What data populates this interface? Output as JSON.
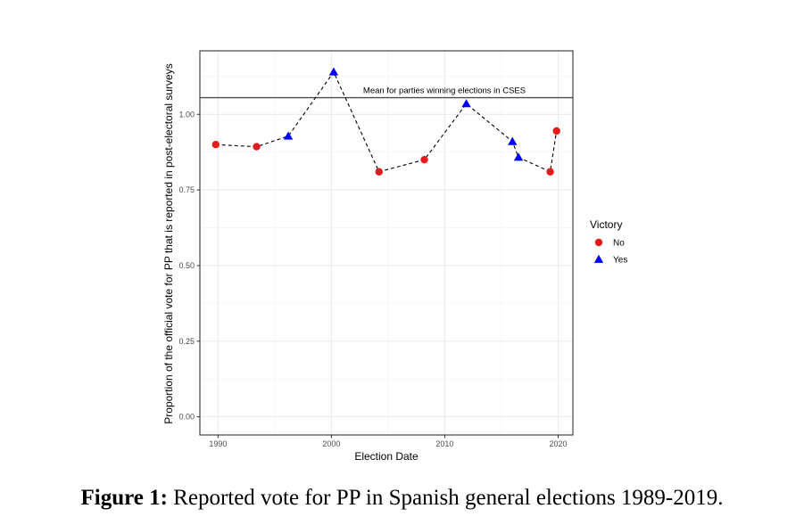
{
  "chart_data": {
    "type": "scatter",
    "xlabel": "Election Date",
    "ylabel": "Proportion of the official vote for PP that is reported in post-electoral surveys",
    "xlim": [
      1988.4,
      2021.3
    ],
    "ylim": [
      -0.06,
      1.21
    ],
    "x_ticks": [
      1990,
      2000,
      2010,
      2020
    ],
    "x_tick_labels": [
      "1990",
      "2000",
      "2010",
      "2020"
    ],
    "y_ticks": [
      0.0,
      0.25,
      0.5,
      0.75,
      1.0
    ],
    "y_tick_labels": [
      "0.00",
      "0.25",
      "0.50",
      "0.75",
      "1.00"
    ],
    "grid": true,
    "connect_line": "dashed",
    "reference_line": {
      "y": 1.055,
      "label": "Mean for parties winning elections in CSES"
    },
    "legend": {
      "title": "Victory",
      "position": "right",
      "entries": [
        {
          "label": "No",
          "shape": "circle",
          "color": "#e41a1c"
        },
        {
          "label": "Yes",
          "shape": "triangle",
          "color": "#0000ff"
        }
      ]
    },
    "points": [
      {
        "x": 1989.8,
        "y": 0.9,
        "victory": "No"
      },
      {
        "x": 1993.4,
        "y": 0.893,
        "victory": "No"
      },
      {
        "x": 1996.2,
        "y": 0.928,
        "victory": "Yes"
      },
      {
        "x": 2000.2,
        "y": 1.14,
        "victory": "Yes"
      },
      {
        "x": 2004.2,
        "y": 0.81,
        "victory": "No"
      },
      {
        "x": 2008.2,
        "y": 0.85,
        "victory": "No"
      },
      {
        "x": 2011.9,
        "y": 1.035,
        "victory": "Yes"
      },
      {
        "x": 2015.97,
        "y": 0.91,
        "victory": "Yes"
      },
      {
        "x": 2016.5,
        "y": 0.858,
        "victory": "Yes"
      },
      {
        "x": 2019.3,
        "y": 0.81,
        "victory": "No"
      },
      {
        "x": 2019.86,
        "y": 0.945,
        "victory": "No"
      }
    ]
  },
  "caption": {
    "label": "Figure 1:",
    "text": "Reported vote for PP in Spanish general elections 1989-2019."
  }
}
